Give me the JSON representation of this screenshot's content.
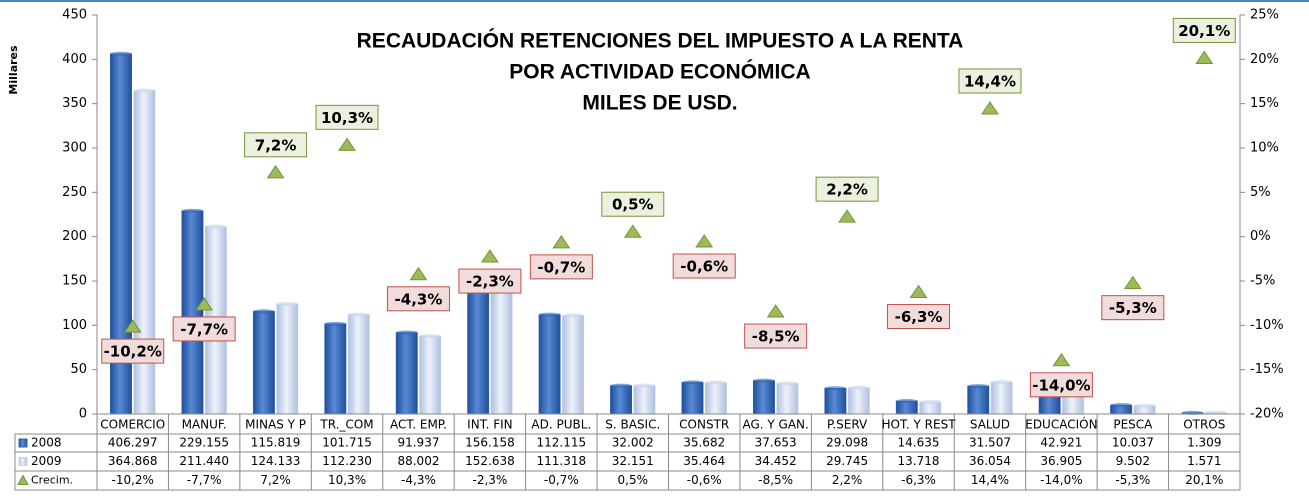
{
  "chart_data": {
    "type": "bar_line",
    "title": [
      "RECAUDACIÓN RETENCIONES DEL IMPUESTO A LA RENTA",
      "POR ACTIVIDAD ECONÓMICA",
      "MILES DE  USD."
    ],
    "y_label": "Millares",
    "categories": [
      "COMERCIO",
      "MANUF.",
      "MINAS Y P",
      "TR._COM",
      "ACT. EMP.",
      "INT. FIN",
      "AD. PUBL.",
      "S. BASIC.",
      "CONSTR",
      "AG. Y GAN.",
      "P.SERV",
      "HOT. Y REST",
      "SALUD",
      "EDUCACIÓN",
      "PESCA",
      "OTROS"
    ],
    "series": [
      {
        "name": "2008",
        "color": "#2f65b5",
        "values": [
          406.297,
          229.155,
          115.819,
          101.715,
          91.937,
          156.158,
          112.115,
          32.002,
          35.682,
          37.653,
          29.098,
          14.635,
          31.507,
          42.921,
          10.037,
          1.309
        ],
        "value_labels": [
          "406.297",
          "229.155",
          "115.819",
          "101.715",
          "91.937",
          "156.158",
          "112.115",
          "32.002",
          "35.682",
          "37.653",
          "29.098",
          "14.635",
          "31.507",
          "42.921",
          "10.037",
          "1.309"
        ]
      },
      {
        "name": "2009",
        "color": "#c9d5ee",
        "values": [
          364.868,
          211.44,
          124.133,
          112.23,
          88.002,
          152.638,
          111.318,
          32.151,
          35.464,
          34.452,
          29.745,
          13.718,
          36.054,
          36.905,
          9.502,
          1.571
        ],
        "value_labels": [
          "364.868",
          "211.440",
          "124.133",
          "112.230",
          "88.002",
          "152.638",
          "111.318",
          "32.151",
          "35.464",
          "34.452",
          "29.745",
          "13.718",
          "36.054",
          "36.905",
          "9.502",
          "1.571"
        ]
      },
      {
        "name": "Crecim.",
        "color": "#9bbb59",
        "axis": "y2",
        "values": [
          -10.2,
          -7.7,
          7.2,
          10.3,
          -4.3,
          -2.3,
          -0.7,
          0.5,
          -0.6,
          -8.5,
          2.2,
          -6.3,
          14.4,
          -14.0,
          -5.3,
          20.1
        ],
        "value_labels": [
          "-10,2%",
          "-7,7%",
          "7,2%",
          "10,3%",
          "-4,3%",
          "-2,3%",
          "-0,7%",
          "0,5%",
          "-0,6%",
          "-8,5%",
          "2,2%",
          "-6,3%",
          "14,4%",
          "-14,0%",
          "-5,3%",
          "20,1%"
        ]
      }
    ],
    "ylim": [
      0,
      450
    ],
    "yticks": [
      0,
      50,
      100,
      150,
      200,
      250,
      300,
      350,
      400,
      450
    ],
    "y2lim": [
      -20,
      25
    ],
    "y2ticks": [
      {
        "value": -20,
        "label": "-20%"
      },
      {
        "value": -15,
        "label": "-15%"
      },
      {
        "value": -10,
        "label": "-10%"
      },
      {
        "value": -5,
        "label": "-5%"
      },
      {
        "value": 0,
        "label": "0%"
      },
      {
        "value": 5,
        "label": "5%"
      },
      {
        "value": 10,
        "label": "10%"
      },
      {
        "value": 15,
        "label": "15%"
      },
      {
        "value": 20,
        "label": "20%"
      },
      {
        "value": 25,
        "label": "25%"
      }
    ]
  }
}
